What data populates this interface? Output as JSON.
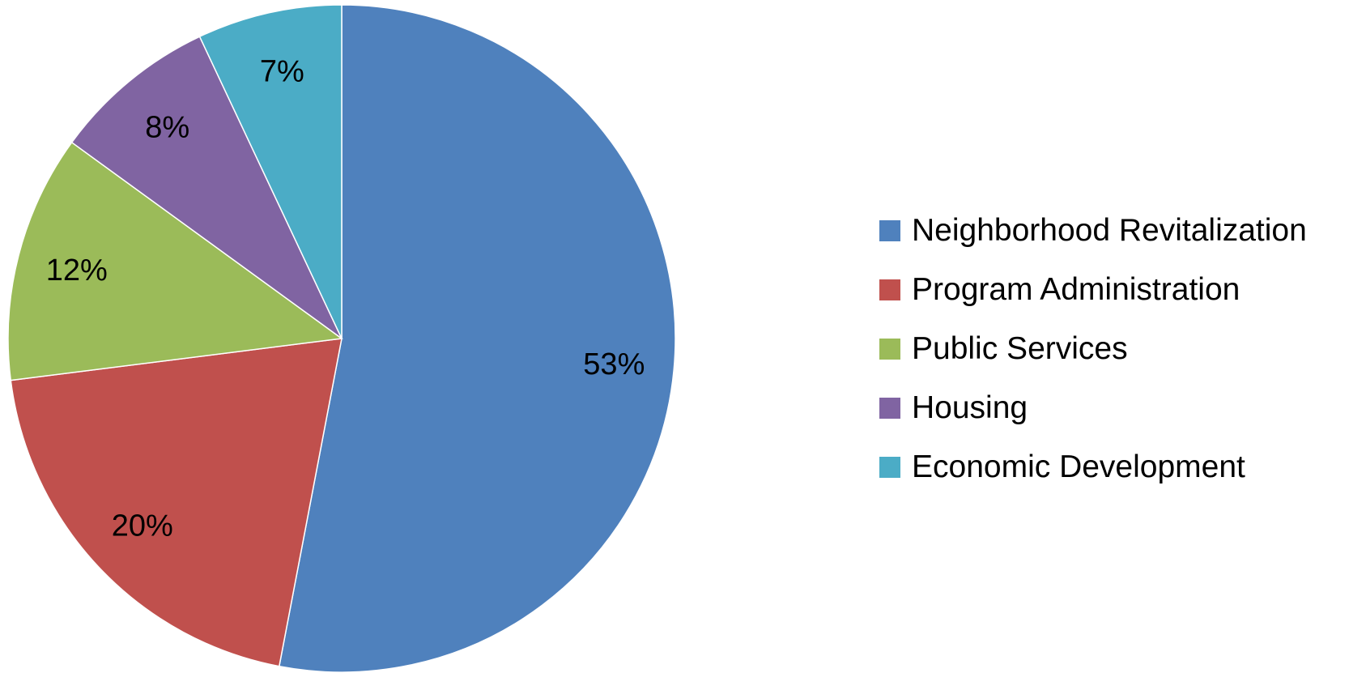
{
  "chart_data": {
    "type": "pie",
    "title": "",
    "slices": [
      {
        "name": "Neighborhood Revitalization",
        "value": 53,
        "label": "53%",
        "color": "#4F81BD"
      },
      {
        "name": "Program Administration",
        "value": 20,
        "label": "20%",
        "color": "#C0504D"
      },
      {
        "name": "Public Services",
        "value": 12,
        "label": "12%",
        "color": "#9BBB59"
      },
      {
        "name": "Housing",
        "value": 8,
        "label": "8%",
        "color": "#8064A2"
      },
      {
        "name": "Economic Development",
        "value": 7,
        "label": "7%",
        "color": "#4BACC6"
      }
    ],
    "start_angle": "12 o'clock",
    "direction": "clockwise",
    "legend_position": "right"
  },
  "legend": {
    "items": [
      {
        "label": "Neighborhood Revitalization",
        "color": "#4F81BD"
      },
      {
        "label": "Program Administration",
        "color": "#C0504D"
      },
      {
        "label": "Public Services",
        "color": "#9BBB59"
      },
      {
        "label": "Housing",
        "color": "#8064A2"
      },
      {
        "label": "Economic Development",
        "color": "#4BACC6"
      }
    ]
  }
}
